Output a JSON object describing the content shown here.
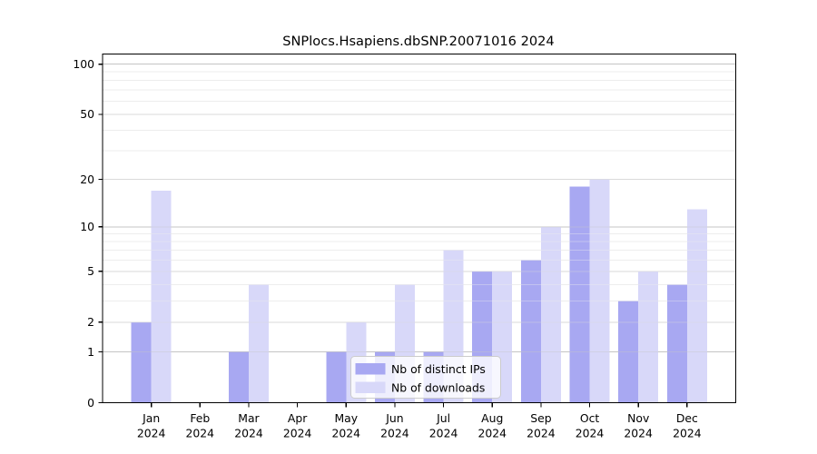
{
  "window": {
    "background": "#ffffff"
  },
  "chart_data": {
    "type": "bar",
    "title": "SNPlocs.Hsapiens.dbSNP.20071016 2024",
    "year": "2024",
    "categories": [
      "Jan",
      "Feb",
      "Mar",
      "Apr",
      "May",
      "Jun",
      "Jul",
      "Aug",
      "Sep",
      "Oct",
      "Nov",
      "Dec"
    ],
    "series": [
      {
        "name": "Nb of distinct IPs",
        "color": "#a8a8f2",
        "values": [
          2,
          0,
          1,
          0,
          1,
          1,
          1,
          5,
          6,
          18,
          3,
          4
        ]
      },
      {
        "name": "Nb of downloads",
        "color": "#d8d8f9",
        "values": [
          17,
          0,
          4,
          0,
          2,
          4,
          7,
          5,
          10,
          20,
          5,
          13
        ]
      }
    ],
    "y_axis": {
      "scale": "log1p",
      "ylim": [
        0,
        100
      ],
      "ticks": [
        0,
        1,
        2,
        5,
        10,
        20,
        50,
        100
      ],
      "minor_ticks": [
        3,
        4,
        6,
        7,
        8,
        9,
        30,
        40,
        60,
        70,
        80,
        90
      ]
    },
    "xlabel": "",
    "ylabel": "",
    "grid": true,
    "legend_position": "lower center",
    "grid_colors": {
      "major": "#c5c5c5",
      "mid": "#dadada",
      "minor": "#ededed"
    }
  }
}
